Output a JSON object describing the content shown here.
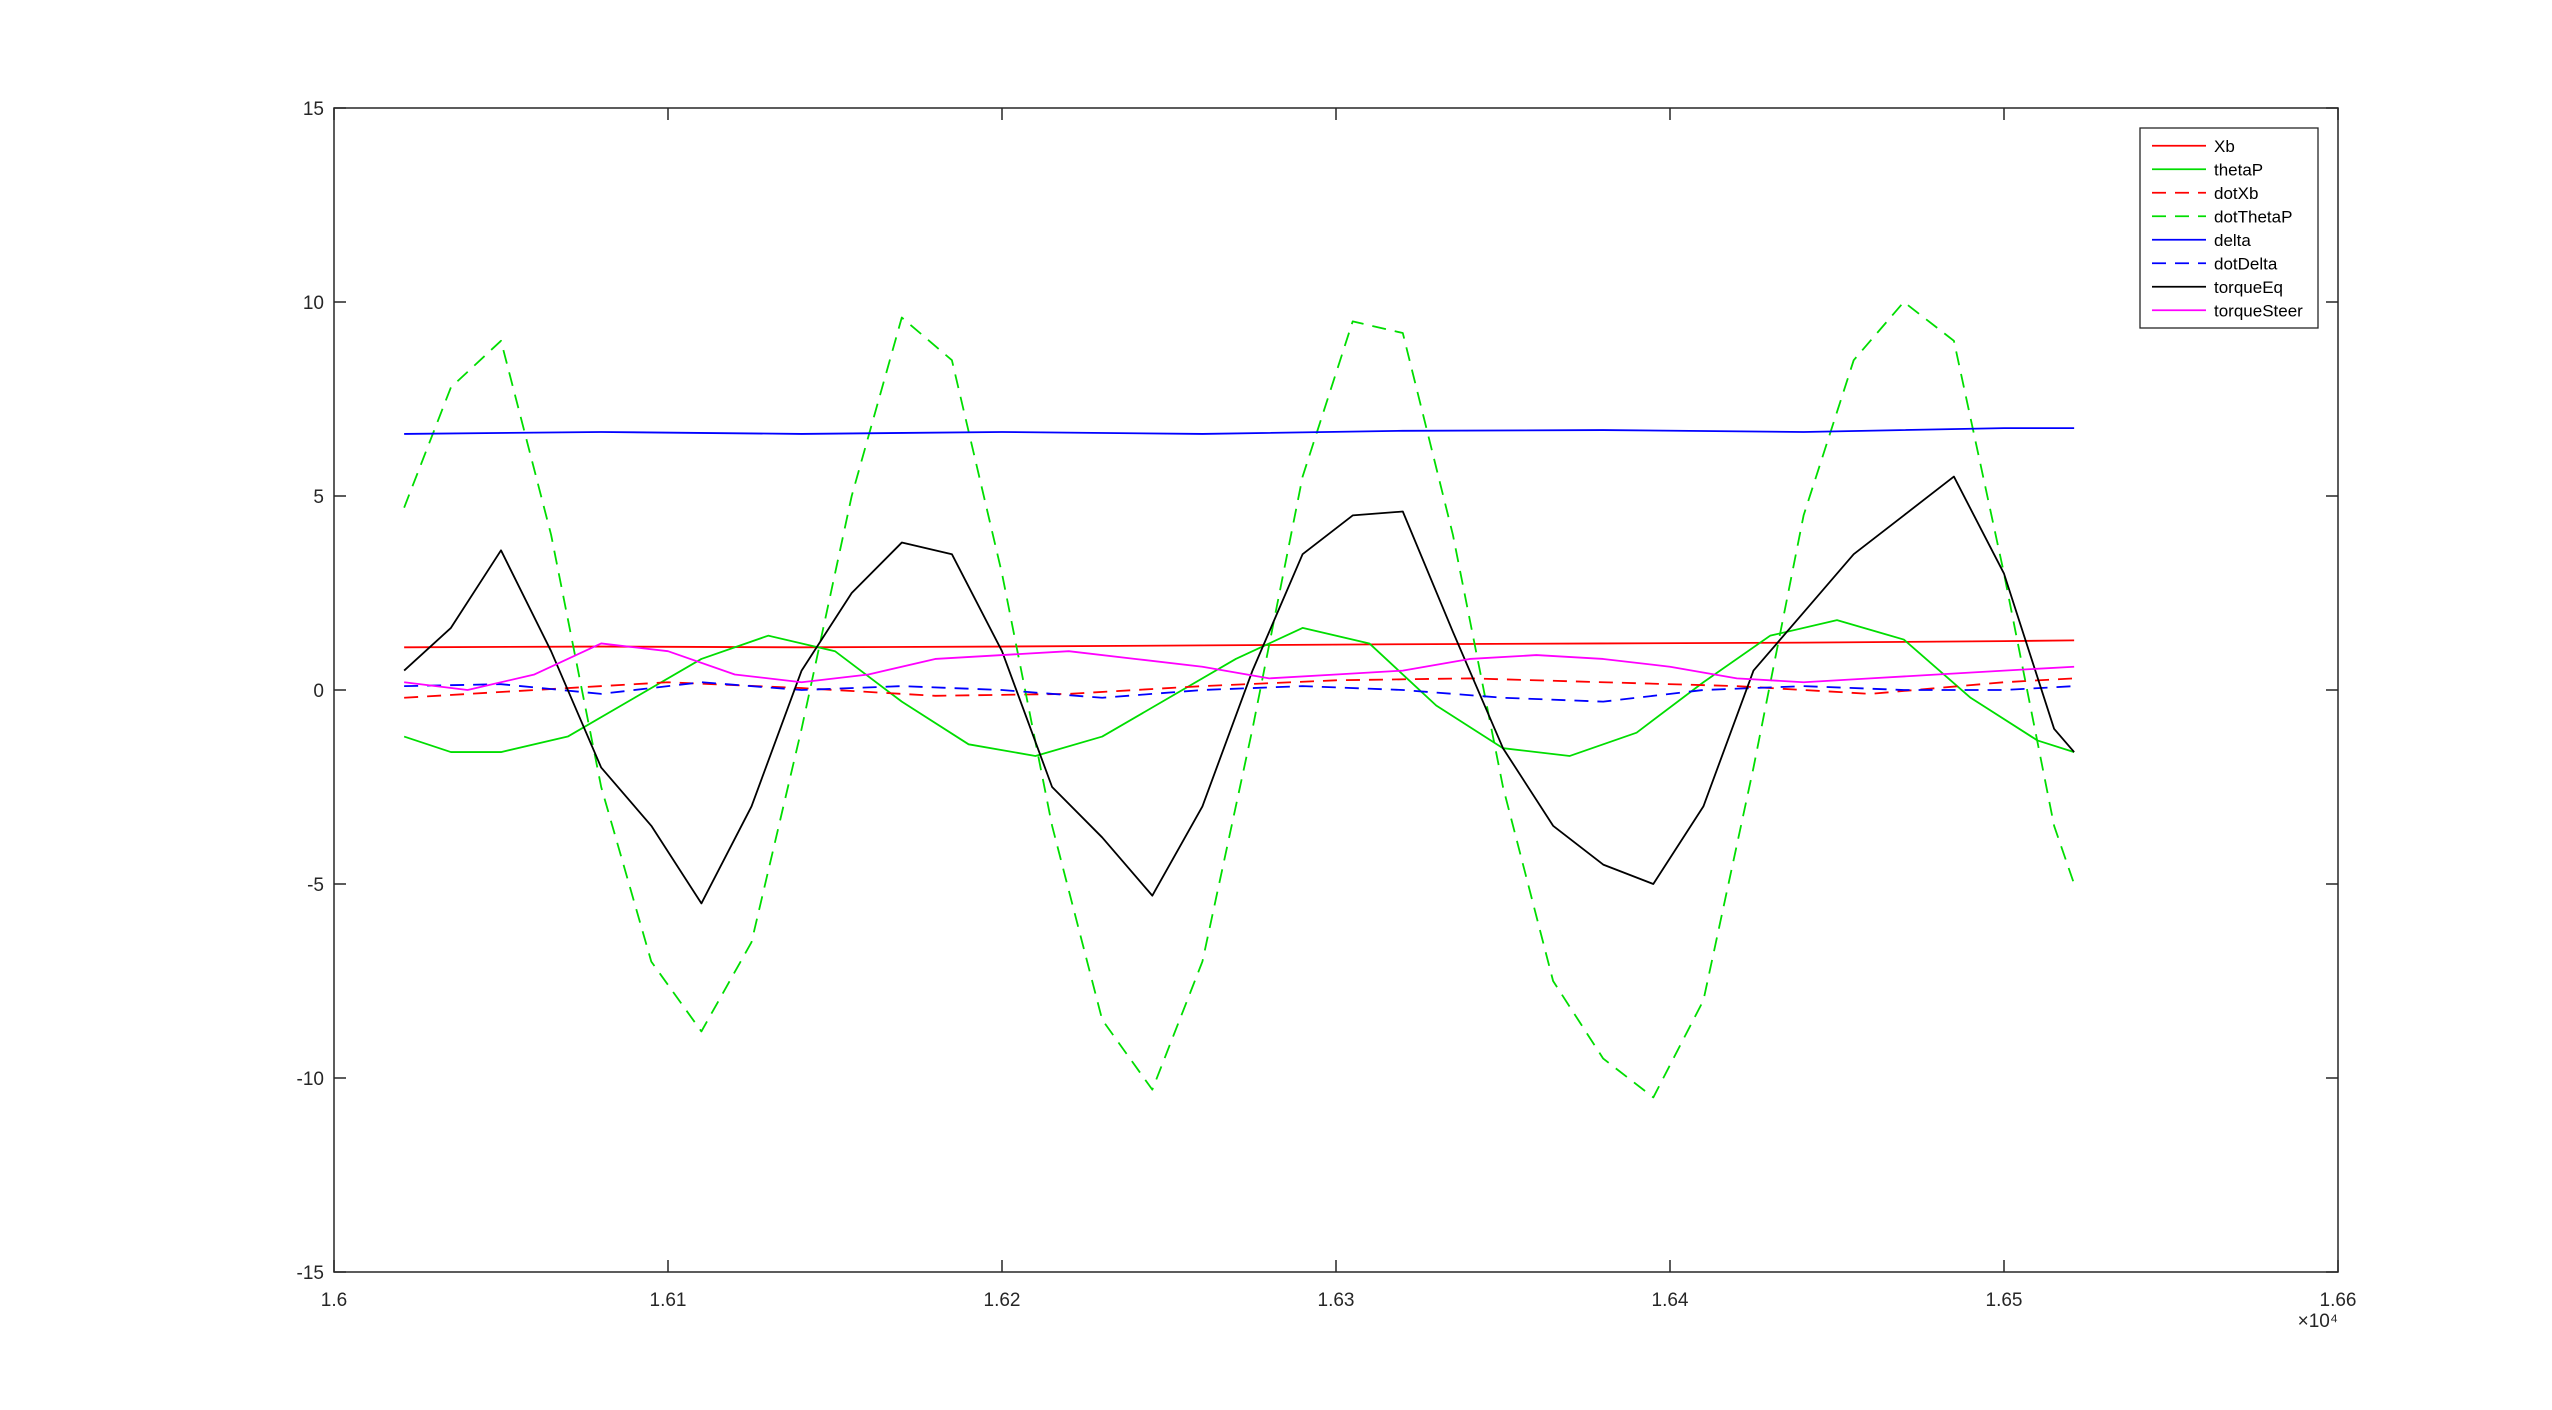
{
  "chart_data": {
    "type": "line",
    "title": "",
    "xlabel": "",
    "ylabel": "",
    "xlim": [
      16000,
      16600
    ],
    "ylim": [
      -15,
      15
    ],
    "x_scale_label": "×10⁴",
    "x_ticks": [
      16000,
      16100,
      16200,
      16300,
      16400,
      16500,
      16600
    ],
    "x_tick_labels": [
      "1.6",
      "1.61",
      "1.62",
      "1.63",
      "1.64",
      "1.65",
      "1.66"
    ],
    "y_ticks": [
      -15,
      -10,
      -5,
      0,
      5,
      10,
      15
    ],
    "y_tick_labels": [
      "-15",
      "-10",
      "-5",
      "0",
      "5",
      "10",
      "15"
    ],
    "grid": false,
    "legend_position": "top-right",
    "x_range_data": [
      16021,
      16521
    ],
    "series": [
      {
        "name": "Xb",
        "color": "#ff0000",
        "dash": "solid",
        "x": [
          16021,
          16080,
          16140,
          16200,
          16260,
          16320,
          16380,
          16440,
          16500,
          16521
        ],
        "y": [
          1.1,
          1.12,
          1.1,
          1.12,
          1.15,
          1.18,
          1.2,
          1.22,
          1.26,
          1.28
        ]
      },
      {
        "name": "thetaP",
        "color": "#00dd00",
        "dash": "solid",
        "x": [
          16021,
          16035,
          16050,
          16070,
          16090,
          16110,
          16130,
          16150,
          16170,
          16190,
          16210,
          16230,
          16250,
          16270,
          16290,
          16310,
          16330,
          16350,
          16370,
          16390,
          16410,
          16430,
          16450,
          16470,
          16490,
          16510,
          16521
        ],
        "y": [
          -1.2,
          -1.6,
          -1.6,
          -1.2,
          -0.2,
          0.8,
          1.4,
          1.0,
          -0.3,
          -1.4,
          -1.7,
          -1.2,
          -0.2,
          0.8,
          1.6,
          1.2,
          -0.4,
          -1.5,
          -1.7,
          -1.1,
          0.2,
          1.4,
          1.8,
          1.3,
          -0.2,
          -1.3,
          -1.6
        ]
      },
      {
        "name": "dotXb",
        "color": "#ff0000",
        "dash": "dashed",
        "x": [
          16021,
          16060,
          16100,
          16140,
          16180,
          16220,
          16260,
          16300,
          16340,
          16380,
          16420,
          16460,
          16500,
          16521
        ],
        "y": [
          -0.2,
          0.0,
          0.2,
          0.05,
          -0.15,
          -0.1,
          0.1,
          0.25,
          0.3,
          0.2,
          0.1,
          -0.1,
          0.2,
          0.3
        ]
      },
      {
        "name": "dotThetaP",
        "color": "#00dd00",
        "dash": "dashed",
        "x": [
          16021,
          16035,
          16050,
          16065,
          16080,
          16095,
          16110,
          16125,
          16140,
          16155,
          16170,
          16185,
          16200,
          16215,
          16230,
          16245,
          16260,
          16275,
          16290,
          16305,
          16320,
          16335,
          16350,
          16365,
          16380,
          16395,
          16410,
          16425,
          16440,
          16455,
          16470,
          16485,
          16500,
          16515,
          16521
        ],
        "y": [
          4.7,
          7.8,
          9.0,
          4.0,
          -2.5,
          -7.0,
          -8.8,
          -6.5,
          -1.0,
          5.0,
          9.6,
          8.5,
          3.0,
          -3.5,
          -8.5,
          -10.3,
          -7.0,
          -1.0,
          5.5,
          9.5,
          9.2,
          4.0,
          -2.5,
          -7.5,
          -9.5,
          -10.5,
          -8.0,
          -2.0,
          4.5,
          8.5,
          10.0,
          9.0,
          3.0,
          -3.5,
          -5.0
        ]
      },
      {
        "name": "delta",
        "color": "#0000ff",
        "dash": "solid",
        "x": [
          16021,
          16080,
          16140,
          16200,
          16260,
          16320,
          16380,
          16440,
          16500,
          16521
        ],
        "y": [
          6.6,
          6.65,
          6.6,
          6.65,
          6.6,
          6.68,
          6.7,
          6.65,
          6.75,
          6.75
        ]
      },
      {
        "name": "dotDelta",
        "color": "#0000ff",
        "dash": "dashed",
        "x": [
          16021,
          16050,
          16080,
          16110,
          16140,
          16170,
          16200,
          16230,
          16260,
          16290,
          16320,
          16350,
          16380,
          16410,
          16440,
          16470,
          16500,
          16521
        ],
        "y": [
          0.1,
          0.15,
          -0.1,
          0.2,
          0.0,
          0.1,
          0.0,
          -0.2,
          0.0,
          0.1,
          0.0,
          -0.2,
          -0.3,
          0.0,
          0.1,
          0.0,
          0.0,
          0.1
        ]
      },
      {
        "name": "torqueEq",
        "color": "#000000",
        "dash": "solid",
        "x": [
          16021,
          16035,
          16050,
          16065,
          16080,
          16095,
          16110,
          16125,
          16140,
          16155,
          16170,
          16185,
          16200,
          16215,
          16230,
          16245,
          16260,
          16275,
          16290,
          16305,
          16320,
          16335,
          16350,
          16365,
          16380,
          16395,
          16410,
          16425,
          16440,
          16455,
          16470,
          16485,
          16500,
          16515,
          16521
        ],
        "y": [
          0.5,
          1.6,
          3.6,
          1.0,
          -2.0,
          -3.5,
          -5.5,
          -3.0,
          0.5,
          2.5,
          3.8,
          3.5,
          1.0,
          -2.5,
          -3.8,
          -5.3,
          -3.0,
          0.5,
          3.5,
          4.5,
          4.6,
          1.5,
          -1.5,
          -3.5,
          -4.5,
          -5.0,
          -3.0,
          0.5,
          2.0,
          3.5,
          4.5,
          5.5,
          3.0,
          -1.0,
          -1.6
        ]
      },
      {
        "name": "torqueSteer",
        "color": "#ff00ff",
        "dash": "solid",
        "x": [
          16021,
          16040,
          16060,
          16080,
          16100,
          16120,
          16140,
          16160,
          16180,
          16200,
          16220,
          16240,
          16260,
          16280,
          16300,
          16320,
          16340,
          16360,
          16380,
          16400,
          16420,
          16440,
          16460,
          16480,
          16500,
          16521
        ],
        "y": [
          0.2,
          0.0,
          0.4,
          1.2,
          1.0,
          0.4,
          0.2,
          0.4,
          0.8,
          0.9,
          1.0,
          0.8,
          0.6,
          0.3,
          0.4,
          0.5,
          0.8,
          0.9,
          0.8,
          0.6,
          0.3,
          0.2,
          0.3,
          0.4,
          0.5,
          0.6
        ]
      }
    ]
  }
}
